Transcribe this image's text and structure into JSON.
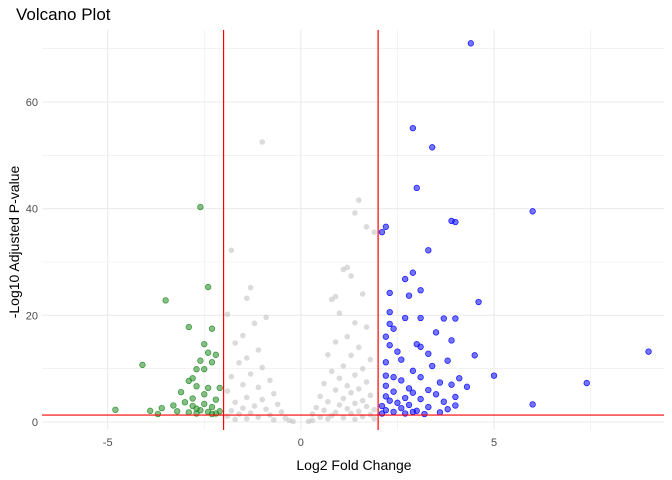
{
  "chart_data": {
    "type": "scatter",
    "title": "Volcano Plot",
    "xlabel": "Log2 Fold Change",
    "ylabel": "-Log10 Adjusted P-value",
    "xlim": [
      -6.7,
      9.4
    ],
    "ylim": [
      -1.5,
      73.5
    ],
    "x_ticks": [
      -5,
      0,
      5
    ],
    "y_ticks": [
      0,
      20,
      40,
      60
    ],
    "grid": true,
    "legend": "none",
    "thresholds": {
      "log2fc": [
        -2,
        2
      ],
      "neg_log10_padj": 1.3,
      "line_color": "#ff0000"
    },
    "colors": {
      "down": "#228b22",
      "up": "#0000ff",
      "ns": "#bebebe",
      "grid": "#ebebeb"
    },
    "series": [
      {
        "category": "down",
        "points": [
          [
            -3.5,
            22.8
          ],
          [
            -2.4,
            25.3
          ],
          [
            -2.6,
            40.3
          ],
          [
            -2.9,
            17.8
          ],
          [
            -2.3,
            17.5
          ],
          [
            -4.1,
            10.7
          ],
          [
            -2.5,
            14.6
          ],
          [
            -2.4,
            13.0
          ],
          [
            -2.2,
            12.6
          ],
          [
            -2.3,
            11.2
          ],
          [
            -2.6,
            11.5
          ],
          [
            -2.7,
            9.9
          ],
          [
            -2.5,
            9.9
          ],
          [
            -2.8,
            8.2
          ],
          [
            -2.9,
            7.7
          ],
          [
            -2.7,
            6.7
          ],
          [
            -2.4,
            6.4
          ],
          [
            -2.1,
            6.4
          ],
          [
            -3.1,
            5.6
          ],
          [
            -2.5,
            5.2
          ],
          [
            -2.8,
            4.4
          ],
          [
            -2.2,
            4.2
          ],
          [
            -3.0,
            3.7
          ],
          [
            -2.5,
            3.4
          ],
          [
            -3.3,
            3.1
          ],
          [
            -2.8,
            3.0
          ],
          [
            -2.3,
            2.8
          ],
          [
            -3.6,
            2.6
          ],
          [
            -2.7,
            2.5
          ],
          [
            -4.8,
            2.3
          ],
          [
            -3.9,
            2.1
          ],
          [
            -2.6,
            2.2
          ],
          [
            -2.1,
            2.0
          ],
          [
            -3.2,
            2.0
          ],
          [
            -2.4,
            1.9
          ],
          [
            -2.9,
            1.8
          ],
          [
            -2.2,
            1.6
          ],
          [
            -3.7,
            1.5
          ],
          [
            -2.7,
            1.6
          ],
          [
            -2.3,
            1.5
          ]
        ]
      },
      {
        "category": "up",
        "points": [
          [
            4.4,
            71.0
          ],
          [
            2.9,
            55.1
          ],
          [
            3.4,
            51.5
          ],
          [
            3.0,
            43.9
          ],
          [
            6.0,
            39.5
          ],
          [
            3.9,
            37.7
          ],
          [
            4.0,
            37.5
          ],
          [
            2.2,
            36.6
          ],
          [
            2.1,
            35.6
          ],
          [
            3.3,
            32.2
          ],
          [
            2.9,
            28.0
          ],
          [
            2.7,
            26.8
          ],
          [
            3.1,
            24.7
          ],
          [
            2.3,
            24.2
          ],
          [
            2.8,
            23.7
          ],
          [
            4.6,
            22.5
          ],
          [
            2.3,
            20.6
          ],
          [
            2.7,
            19.5
          ],
          [
            3.7,
            19.4
          ],
          [
            3.1,
            19.5
          ],
          [
            4.0,
            19.4
          ],
          [
            2.3,
            18.4
          ],
          [
            2.4,
            17.5
          ],
          [
            3.5,
            16.8
          ],
          [
            2.2,
            16.0
          ],
          [
            3.9,
            15.3
          ],
          [
            2.3,
            14.4
          ],
          [
            3.0,
            14.6
          ],
          [
            3.1,
            14.1
          ],
          [
            2.5,
            13.2
          ],
          [
            9.0,
            13.2
          ],
          [
            3.3,
            12.8
          ],
          [
            4.5,
            12.5
          ],
          [
            2.6,
            11.7
          ],
          [
            2.2,
            11.2
          ],
          [
            3.8,
            11.5
          ],
          [
            3.4,
            10.5
          ],
          [
            2.9,
            9.6
          ],
          [
            2.2,
            8.7
          ],
          [
            5.0,
            8.7
          ],
          [
            2.4,
            8.4
          ],
          [
            3.1,
            8.4
          ],
          [
            4.1,
            8.2
          ],
          [
            2.6,
            7.8
          ],
          [
            3.6,
            7.4
          ],
          [
            7.4,
            7.3
          ],
          [
            3.9,
            7.0
          ],
          [
            2.2,
            6.8
          ],
          [
            4.3,
            6.6
          ],
          [
            2.8,
            6.3
          ],
          [
            3.3,
            6.0
          ],
          [
            2.4,
            5.7
          ],
          [
            2.9,
            5.5
          ],
          [
            3.5,
            5.2
          ],
          [
            2.2,
            4.8
          ],
          [
            4.0,
            4.7
          ],
          [
            2.7,
            4.5
          ],
          [
            3.1,
            4.3
          ],
          [
            2.3,
            4.0
          ],
          [
            3.7,
            3.8
          ],
          [
            2.5,
            3.6
          ],
          [
            6.0,
            3.3
          ],
          [
            2.8,
            3.2
          ],
          [
            4.0,
            3.1
          ],
          [
            2.1,
            3.0
          ],
          [
            3.3,
            2.8
          ],
          [
            2.6,
            2.6
          ],
          [
            3.8,
            2.4
          ],
          [
            2.2,
            2.2
          ],
          [
            3.0,
            2.1
          ],
          [
            2.9,
            1.9
          ],
          [
            2.4,
            1.9
          ],
          [
            3.6,
            1.8
          ],
          [
            2.1,
            1.6
          ],
          [
            2.7,
            1.6
          ],
          [
            3.2,
            1.5
          ]
        ]
      },
      {
        "category": "ns",
        "points": [
          [
            -1.0,
            52.5
          ],
          [
            1.5,
            41.6
          ],
          [
            1.4,
            39.2
          ],
          [
            1.9,
            35.6
          ],
          [
            1.7,
            36.6
          ],
          [
            -1.8,
            32.2
          ],
          [
            1.2,
            29.0
          ],
          [
            1.1,
            28.6
          ],
          [
            1.3,
            27.4
          ],
          [
            -1.3,
            25.2
          ],
          [
            0.9,
            23.5
          ],
          [
            1.6,
            24.0
          ],
          [
            -1.4,
            23.2
          ],
          [
            0.8,
            23.0
          ],
          [
            -1.9,
            20.2
          ],
          [
            1.0,
            20.4
          ],
          [
            1.4,
            18.6
          ],
          [
            -1.2,
            18.5
          ],
          [
            -0.9,
            19.6
          ],
          [
            1.7,
            17.8
          ],
          [
            -1.5,
            16.2
          ],
          [
            1.2,
            16.0
          ],
          [
            0.9,
            15.0
          ],
          [
            -1.7,
            14.8
          ],
          [
            1.5,
            14.0
          ],
          [
            -1.1,
            13.5
          ],
          [
            1.3,
            12.5
          ],
          [
            -1.4,
            12.0
          ],
          [
            0.7,
            12.6
          ],
          [
            1.8,
            11.7
          ],
          [
            -1.6,
            11.1
          ],
          [
            1.1,
            10.5
          ],
          [
            -1.0,
            10.2
          ],
          [
            1.6,
            10.0
          ],
          [
            0.8,
            9.5
          ],
          [
            -1.3,
            9.0
          ],
          [
            1.4,
            8.8
          ],
          [
            -1.8,
            8.5
          ],
          [
            1.0,
            8.2
          ],
          [
            -0.8,
            7.8
          ],
          [
            1.7,
            7.5
          ],
          [
            0.6,
            7.2
          ],
          [
            -1.5,
            7.0
          ],
          [
            1.2,
            6.8
          ],
          [
            -1.1,
            6.5
          ],
          [
            1.5,
            6.2
          ],
          [
            0.9,
            6.0
          ],
          [
            -1.9,
            5.8
          ],
          [
            1.3,
            5.5
          ],
          [
            -0.7,
            5.3
          ],
          [
            1.8,
            5.0
          ],
          [
            0.5,
            4.8
          ],
          [
            -1.4,
            4.6
          ],
          [
            1.1,
            4.4
          ],
          [
            -1.0,
            4.2
          ],
          [
            1.6,
            4.0
          ],
          [
            0.7,
            3.8
          ],
          [
            -1.7,
            3.7
          ],
          [
            1.4,
            3.5
          ],
          [
            -0.6,
            3.3
          ],
          [
            1.0,
            3.2
          ],
          [
            -1.2,
            3.0
          ],
          [
            1.7,
            2.9
          ],
          [
            0.4,
            2.7
          ],
          [
            -1.5,
            2.6
          ],
          [
            1.2,
            2.5
          ],
          [
            -0.9,
            2.4
          ],
          [
            1.9,
            2.3
          ],
          [
            0.6,
            2.2
          ],
          [
            -1.8,
            2.1
          ],
          [
            1.5,
            2.0
          ],
          [
            -0.5,
            1.9
          ],
          [
            0.9,
            1.8
          ],
          [
            -1.3,
            1.7
          ],
          [
            1.3,
            1.6
          ],
          [
            0.3,
            1.5
          ],
          [
            -1.6,
            1.5
          ],
          [
            1.8,
            1.4
          ],
          [
            -0.8,
            1.3
          ],
          [
            0.8,
            1.2
          ],
          [
            -1.9,
            1.1
          ],
          [
            1.6,
            1.0
          ],
          [
            0.5,
            0.9
          ],
          [
            -1.1,
            0.9
          ],
          [
            1.1,
            0.8
          ],
          [
            -0.4,
            0.7
          ],
          [
            0.7,
            0.6
          ],
          [
            -1.4,
            0.6
          ],
          [
            1.4,
            0.5
          ],
          [
            -0.7,
            0.4
          ],
          [
            0.3,
            0.3
          ],
          [
            -0.3,
            0.3
          ],
          [
            0.2,
            0.1
          ],
          [
            -0.2,
            0.1
          ],
          [
            1.9,
            0.6
          ],
          [
            -1.7,
            0.5
          ]
        ]
      }
    ]
  }
}
